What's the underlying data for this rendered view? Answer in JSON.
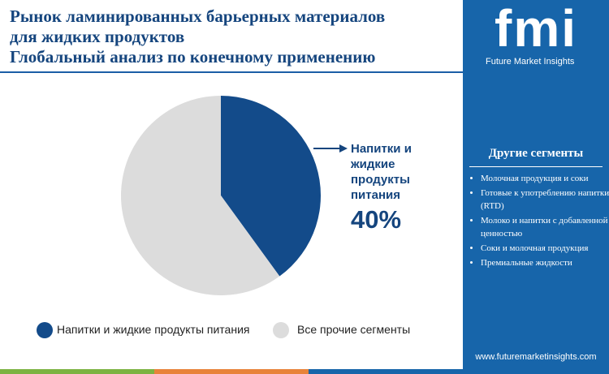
{
  "chart_data": {
    "type": "pie",
    "title": [
      "Рынок ламинированных барьерных материалов",
      "для жидких продуктов",
      "Глобальный анализ по конечному применению"
    ],
    "categories": [
      "Напитки и жидкие продукты питания",
      "Все прочие сегменты"
    ],
    "values": [
      40,
      60
    ],
    "value_labels": [
      "40%",
      null
    ],
    "colors": [
      "#134b8a",
      "#dcdcdc"
    ]
  },
  "sidebar": {
    "logo": "fmi",
    "brand": "Future Market Insights",
    "heading": "Другие сегменты",
    "items": [
      "Молочная продукция и соки",
      "Готовые к употреблению напитки (RTD)",
      "Молоко и напитки с добавленной ценностью",
      "Соки и молочная продукция",
      "Премиальные жидкости"
    ],
    "url": "www.futuremarketinsights.com"
  }
}
